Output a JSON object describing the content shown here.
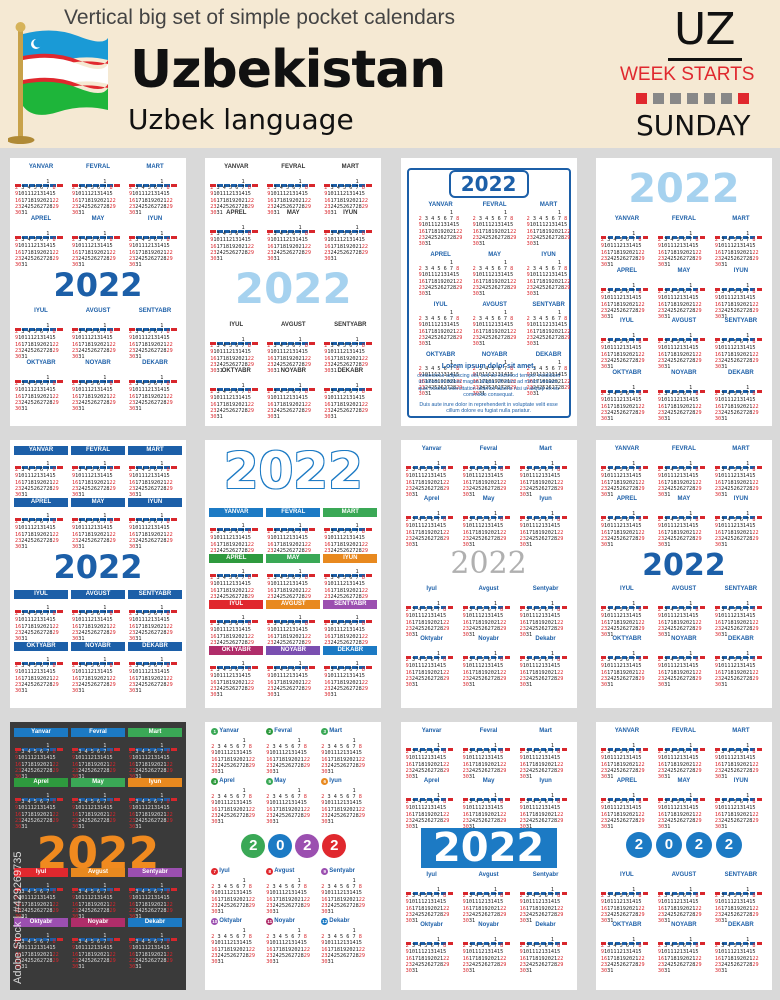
{
  "header": {
    "subtitle": "Vertical big set of simple pocket calendars",
    "title": "Uzbekistan",
    "language": "Uzbek language",
    "country_code": "UZ",
    "week_starts_label": "WEEK STARTS",
    "week_start_day": "SUNDAY"
  },
  "colors": {
    "background": "#d9d9d9",
    "header_bg": "#f5e9d3",
    "accent_blue": "#1c5fa8",
    "accent_red": "#e0282e",
    "sky_blue": "#a6d2ef"
  },
  "year": "2022",
  "months_upper": [
    "YANVAR",
    "FEVRAL",
    "MART",
    "APREL",
    "MAY",
    "IYUN",
    "IYUL",
    "AVGUST",
    "SENTYABR",
    "OKTYABR",
    "NOYABR",
    "DEKABR"
  ],
  "months_title": [
    "Yanvar",
    "Fevral",
    "Mart",
    "Aprel",
    "May",
    "Iyun",
    "Iyul",
    "Avgust",
    "Sentyabr",
    "Oktyabr",
    "Noyabr",
    "Dekabr"
  ],
  "month_numbers": [
    "1",
    "2",
    "3",
    "4",
    "5",
    "6",
    "7",
    "8",
    "9",
    "10",
    "11",
    "12"
  ],
  "weekday_abbr": [
    "DU",
    "SE",
    "CH",
    "PA",
    "JU",
    "SH",
    "YA"
  ],
  "lorem": {
    "heading": "Lorem ipsum dolor sit amet,",
    "body1": "consectetur adipiscing elit, sed do eiusmod tempor incididunt ut labore et dolore magna aliqua. Ut enim ad minim veniam, quis nostrud exercitation ullamco laboris nisi ut aliquip ex ea commodo consequat.",
    "body2": "Duis aute irure dolor in reprehenderit in voluptate velit esse cillum dolore eu fugiat nulla pariatur."
  },
  "watermark": "Adobe Stock | #429269735",
  "calendar_rows": [
    [
      "      1",
      "2345678",
      "9101112131415",
      "16171819202122",
      "23242526272829",
      "3031"
    ],
    [
      "  12345",
      "6789101112",
      "13141516171819",
      "20212223242526",
      "2728"
    ],
    [
      "  12345",
      "6789101112",
      "13141516171819",
      "20212223242526",
      "2728293031"
    ]
  ]
}
